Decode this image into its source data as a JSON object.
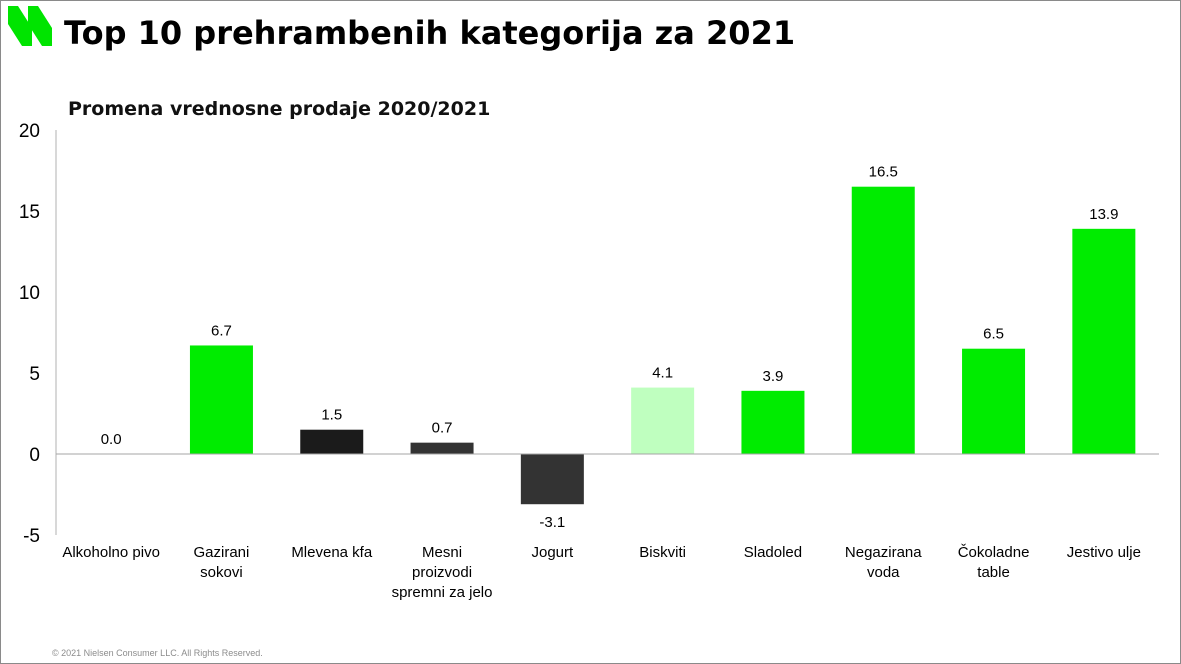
{
  "header": {
    "title": "Top 10 prehrambenih kategorija za 2021",
    "logo_icon": "nielsen-logo-icon",
    "logo_color": "#00e400"
  },
  "footer": {
    "copyright": "© 2021 Nielsen Consumer LLC. All Rights Reserved."
  },
  "chart_data": {
    "type": "bar",
    "title": "Promena vrednosne prodaje 2020/2021",
    "xlabel": "",
    "ylabel": "",
    "ylim": [
      -5,
      20
    ],
    "yticks": [
      {
        "value": 20,
        "label": "20"
      },
      {
        "value": 15,
        "label": "15"
      },
      {
        "value": 10,
        "label": "10"
      },
      {
        "value": 5,
        "label": "5"
      },
      {
        "value": 0,
        "label": "0"
      },
      {
        "value": -5,
        "label": "-5"
      }
    ],
    "grid": false,
    "legend": "none",
    "categories": [
      [
        "Alkoholno pivo"
      ],
      [
        "Gazirani",
        "sokovi"
      ],
      [
        "Mlevena kfa"
      ],
      [
        "Mesni",
        "proizvodi",
        "spremni za jelo"
      ],
      [
        "Jogurt"
      ],
      [
        "Biskviti"
      ],
      [
        "Sladoled"
      ],
      [
        "Negazirana",
        "voda"
      ],
      [
        "Čokoladne",
        "table"
      ],
      [
        "Jestivo ulje"
      ]
    ],
    "values": [
      0.0,
      6.7,
      1.5,
      0.7,
      -3.1,
      4.1,
      3.9,
      16.5,
      6.5,
      13.9
    ],
    "value_labels": [
      "0.0",
      "6.7",
      "1.5",
      "0.7",
      "-3.1",
      "4.1",
      "3.9",
      "16.5",
      "6.5",
      "13.9"
    ],
    "colors": [
      "#00ec00",
      "#00ec00",
      "#1b1b1b",
      "#333333",
      "#333333",
      "#bfffbf",
      "#00ec00",
      "#00ec00",
      "#00ec00",
      "#00ec00"
    ]
  }
}
